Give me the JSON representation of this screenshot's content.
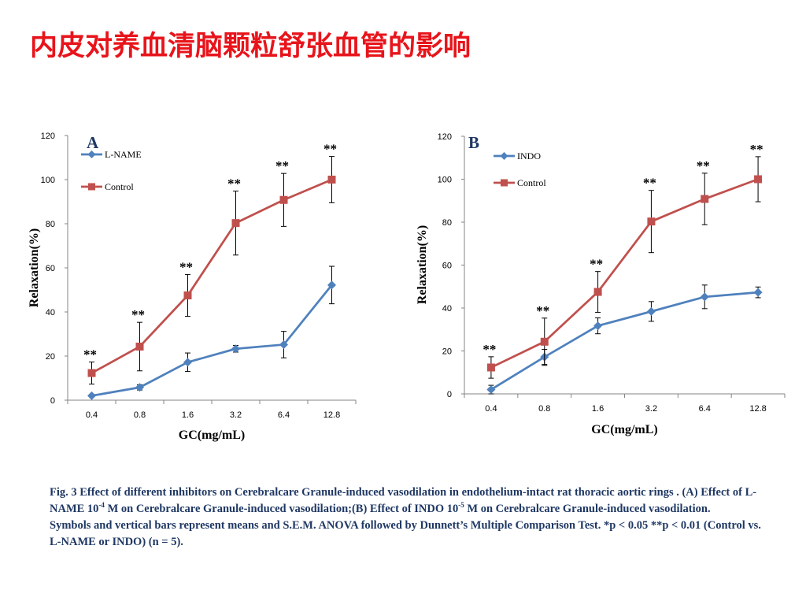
{
  "slide": {
    "title": "内皮对养血清脑颗粒舒张血管的影响"
  },
  "caption": {
    "line1_a": "Fig. 3 Effect of different inhibitors on Cerebralcare Granule-induced vasodilation in endothelium-intact rat thoracic aortic rings . (A) Effect of  L-NAME 10",
    "line1_sup1": "-4",
    "line1_b": " M on Cerebralcare Granule-induced vasodilation;(B) Effect of INDO 10",
    "line1_sup2": "-5",
    "line1_c": " M on Cerebralcare Granule-induced vasodilation.",
    "line2": "Symbols and vertical bars represent means and S.E.M. ANOVA followed by Dunnett’s Multiple Comparison Test. *p < 0.05 **p < 0.01 (Control vs. L-NAME or INDO) (n = 5)."
  },
  "chart_data": [
    {
      "type": "line",
      "panel_label": "A",
      "x": [
        "0.4",
        "0.8",
        "1.6",
        "3.2",
        "6.4",
        "12.8"
      ],
      "xlabel": "GC(mg/mL)",
      "ylabel": "Relaxation(%)",
      "ylim": [
        0,
        120
      ],
      "yticks": [
        "0",
        "20",
        "40",
        "60",
        "80",
        "100",
        "120"
      ],
      "grid": false,
      "legend_position": "top-left",
      "series": [
        {
          "name": "L-NAME",
          "color": "#4f81bd",
          "marker": "diamond",
          "values": [
            2,
            5.8,
            17.2,
            23.3,
            25.2,
            52.2
          ],
          "errors": [
            0,
            1.2,
            4.2,
            1.5,
            6,
            8.5
          ]
        },
        {
          "name": "Control",
          "color": "#c0504d",
          "marker": "square",
          "values": [
            12.3,
            24.3,
            47.5,
            80.3,
            90.8,
            100
          ],
          "errors": [
            5,
            11,
            9.5,
            14.5,
            12,
            10.5
          ]
        }
      ],
      "significance": [
        "**",
        "**",
        "**",
        "**",
        "**",
        "**"
      ]
    },
    {
      "type": "line",
      "panel_label": "B",
      "x": [
        "0.4",
        "0.8",
        "1.6",
        "3.2",
        "6.4",
        "12.8"
      ],
      "xlabel": "GC(mg/mL)",
      "ylabel": "Relaxation(%)",
      "ylim": [
        0,
        120
      ],
      "yticks": [
        "0",
        "20",
        "40",
        "60",
        "80",
        "100",
        "120"
      ],
      "grid": false,
      "legend_position": "top-left",
      "series": [
        {
          "name": "INDO",
          "color": "#4f81bd",
          "marker": "diamond",
          "values": [
            2,
            17.2,
            31.7,
            38.4,
            45.2,
            47.3
          ],
          "errors": [
            2,
            3.5,
            3.7,
            4.6,
            5.5,
            2.5
          ]
        },
        {
          "name": "Control",
          "color": "#c0504d",
          "marker": "square",
          "values": [
            12.3,
            24.3,
            47.5,
            80.3,
            90.8,
            100
          ],
          "errors": [
            5,
            11,
            9.5,
            14.5,
            12,
            10.5
          ]
        }
      ],
      "significance": [
        "**",
        "**",
        "**",
        "**",
        "**",
        "**"
      ]
    }
  ]
}
